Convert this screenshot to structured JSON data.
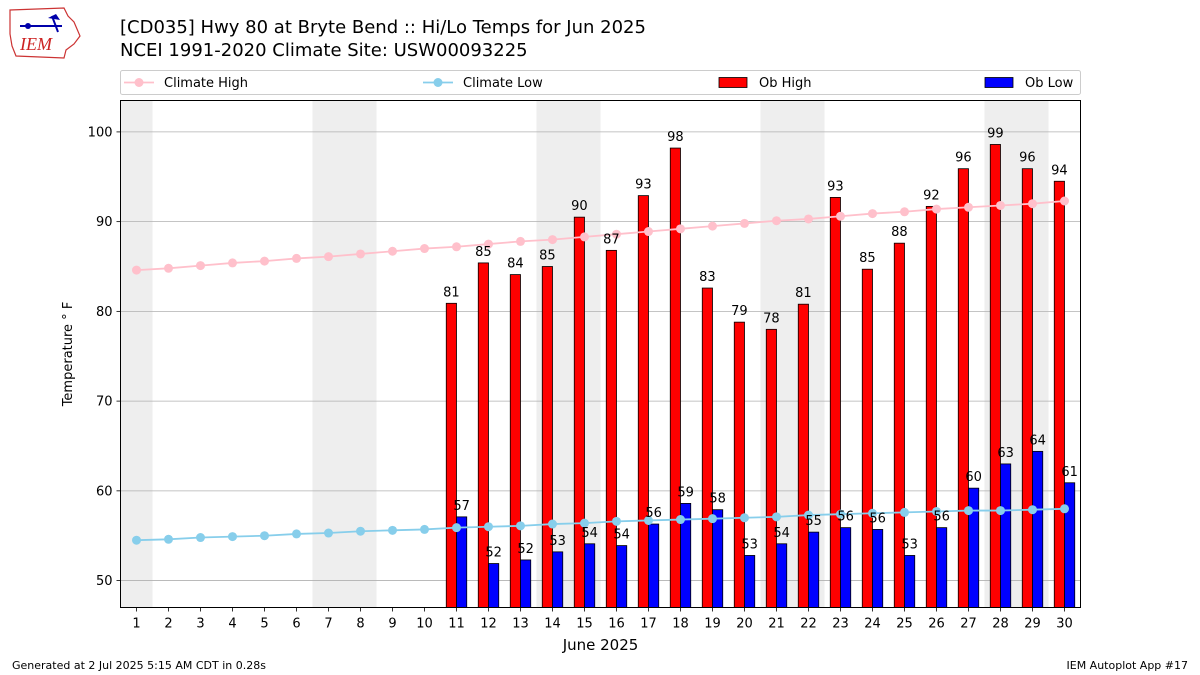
{
  "logo": {
    "text": "IEM"
  },
  "title_line1": "[CD035] Hwy 80 at Bryte Bend :: Hi/Lo Temps for Jun 2025",
  "title_line2": "NCEI 1991-2020 Climate Site: USW00093225",
  "footer_left": "Generated at 2 Jul 2025 5:15 AM CDT in 0.28s",
  "footer_right": "IEM Autoplot App #17",
  "colors": {
    "climate_high": "#ffc0cb",
    "climate_low": "#87ceeb",
    "ob_high": "#ff0000",
    "ob_low": "#0000ff",
    "weekend_shade": "#eeeeee",
    "grid": "#b0b0b0"
  },
  "chart_data": {
    "type": "bar",
    "xlabel": "June 2025",
    "ylabel": "Temperature ° F",
    "ylim": [
      47,
      103.5
    ],
    "yticks": [
      50,
      60,
      70,
      80,
      90,
      100
    ],
    "xlim": [
      0.5,
      30.5
    ],
    "grid": "horizontal",
    "legend_placement": "top",
    "legend": [
      "Climate High",
      "Climate Low",
      "Ob High",
      "Ob Low"
    ],
    "shaded_weekend_days": [
      1,
      7,
      8,
      14,
      15,
      21,
      22,
      28,
      29
    ],
    "days": [
      1,
      2,
      3,
      4,
      5,
      6,
      7,
      8,
      9,
      10,
      11,
      12,
      13,
      14,
      15,
      16,
      17,
      18,
      19,
      20,
      21,
      22,
      23,
      24,
      25,
      26,
      27,
      28,
      29,
      30
    ],
    "climate_high": [
      84.6,
      84.8,
      85.1,
      85.4,
      85.6,
      85.9,
      86.1,
      86.4,
      86.7,
      87.0,
      87.2,
      87.5,
      87.8,
      88.0,
      88.3,
      88.6,
      88.9,
      89.2,
      89.5,
      89.8,
      90.1,
      90.3,
      90.6,
      90.9,
      91.1,
      91.4,
      91.6,
      91.8,
      92.0,
      92.3
    ],
    "climate_low": [
      54.5,
      54.6,
      54.8,
      54.9,
      55.0,
      55.2,
      55.3,
      55.5,
      55.6,
      55.7,
      55.9,
      56.0,
      56.1,
      56.3,
      56.4,
      56.6,
      56.7,
      56.8,
      56.9,
      57.0,
      57.1,
      57.3,
      57.4,
      57.5,
      57.6,
      57.7,
      57.8,
      57.8,
      57.9,
      58.0
    ],
    "series": [
      {
        "name": "Ob High",
        "start_day": 11,
        "values": [
          81,
          85,
          84,
          85,
          90,
          87,
          93,
          98,
          83,
          79,
          78,
          81,
          93,
          85,
          88,
          92,
          96,
          99,
          96,
          94
        ],
        "plot_values": [
          80.9,
          85.4,
          84.1,
          85.0,
          90.5,
          86.8,
          92.9,
          98.2,
          82.6,
          78.8,
          78.0,
          80.8,
          92.7,
          84.7,
          87.6,
          91.7,
          95.9,
          98.6,
          95.9,
          94.5
        ]
      },
      {
        "name": "Ob Low",
        "start_day": 11,
        "values": [
          57,
          52,
          52,
          53,
          54,
          54,
          56,
          59,
          58,
          53,
          54,
          55,
          56,
          56,
          53,
          56,
          60,
          63,
          64,
          61
        ],
        "plot_values": [
          57.1,
          51.9,
          52.3,
          53.2,
          54.1,
          53.9,
          56.3,
          58.6,
          57.9,
          52.8,
          54.1,
          55.4,
          55.9,
          55.7,
          52.8,
          55.9,
          60.3,
          63.0,
          64.4,
          60.9
        ]
      }
    ]
  }
}
